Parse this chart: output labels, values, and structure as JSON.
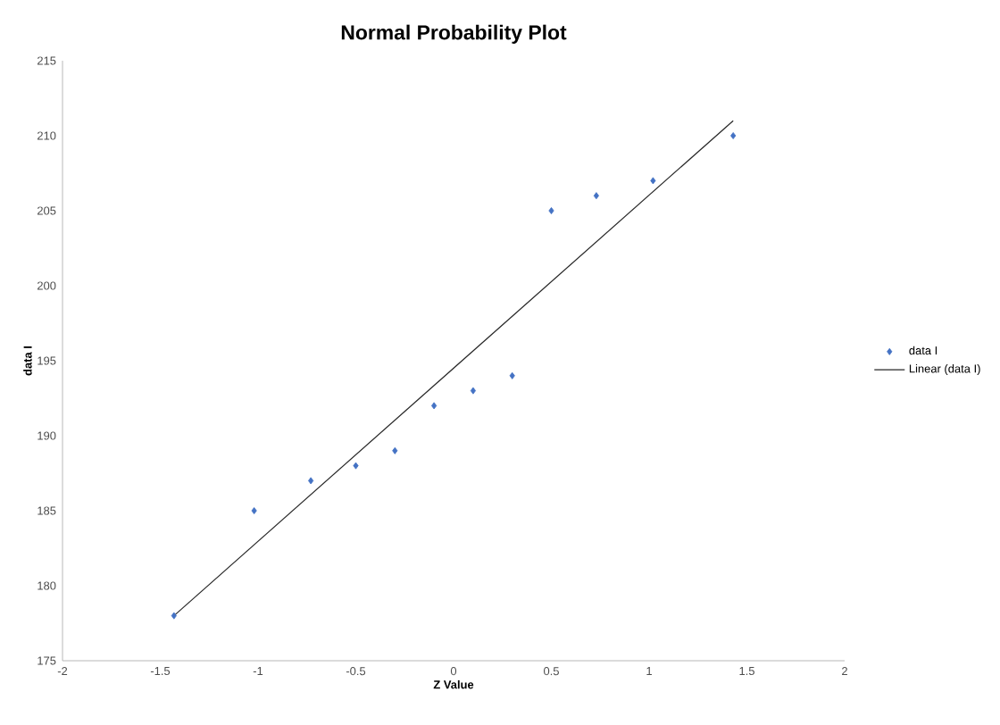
{
  "chart_data": {
    "type": "scatter",
    "title": "Normal Probability Plot",
    "xlabel": "Z Value",
    "ylabel": "data I",
    "series": [
      {
        "name": "data I",
        "color": "#4472c4",
        "marker": "diamond",
        "x": [
          -1.43,
          -1.02,
          -0.73,
          -0.5,
          -0.3,
          -0.1,
          0.1,
          0.3,
          0.5,
          0.73,
          1.02,
          1.43
        ],
        "values": [
          178,
          185,
          187,
          188,
          189,
          192,
          193,
          194,
          205,
          206,
          207,
          210
        ]
      },
      {
        "name": "Linear (data I)",
        "type": "line",
        "color": "#262626",
        "marker": "none",
        "x": [
          -1.43,
          1.43
        ],
        "values": [
          178,
          211
        ]
      }
    ],
    "xlim": [
      -2,
      2
    ],
    "ylim": [
      175,
      215
    ],
    "xticks": [
      -2,
      -1.5,
      -1,
      -0.5,
      0,
      0.5,
      1,
      1.5,
      2
    ],
    "yticks": [
      175,
      180,
      185,
      190,
      195,
      200,
      205,
      210,
      215
    ],
    "grid": false,
    "legend": "right"
  }
}
